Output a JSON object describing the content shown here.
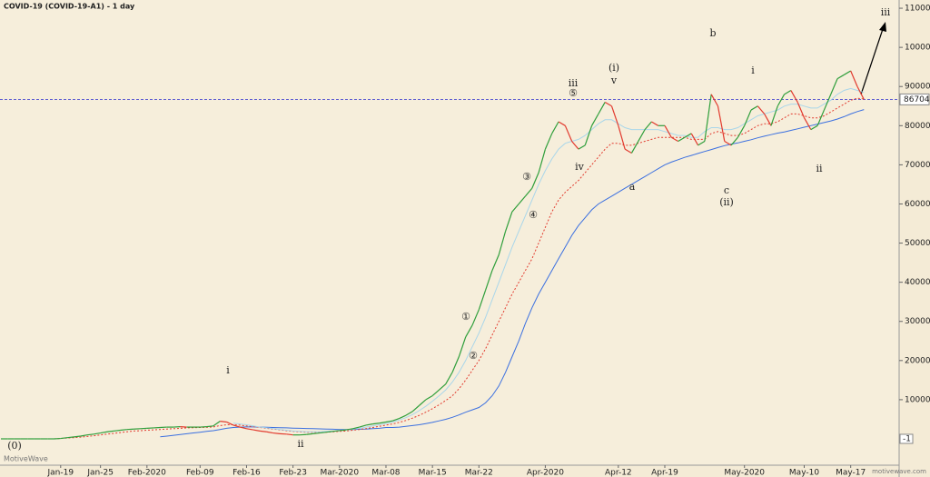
{
  "title": "COVID-19 (COVID-19-A1) - 1 day",
  "watermark": "MotiveWave",
  "site": "motivewave.com",
  "chart_data": {
    "type": "line",
    "categories": [
      null,
      null,
      null,
      null,
      null,
      null,
      null,
      null,
      null,
      "Jan-19",
      null,
      null,
      null,
      null,
      null,
      "Jan-25",
      null,
      null,
      null,
      null,
      null,
      null,
      "Feb-2020",
      null,
      null,
      null,
      null,
      null,
      null,
      null,
      "Feb-09",
      null,
      null,
      null,
      null,
      null,
      null,
      "Feb-16",
      null,
      null,
      null,
      null,
      null,
      null,
      "Feb-23",
      null,
      null,
      null,
      null,
      null,
      null,
      "Mar-2020",
      null,
      null,
      null,
      null,
      null,
      null,
      "Mar-08",
      null,
      null,
      null,
      null,
      null,
      null,
      "Mar-15",
      null,
      null,
      null,
      null,
      null,
      null,
      "Mar-22",
      null,
      null,
      null,
      null,
      null,
      null,
      null,
      null,
      null,
      "Apr-2020",
      null,
      null,
      null,
      null,
      null,
      null,
      null,
      null,
      null,
      null,
      "Apr-12",
      null,
      null,
      null,
      null,
      null,
      null,
      "Apr-19",
      null,
      null,
      null,
      null,
      null,
      null,
      null,
      null,
      null,
      null,
      null,
      "May-2020",
      null,
      null,
      null,
      null,
      null,
      null,
      null,
      null,
      "May-10",
      null,
      null,
      null,
      null,
      null,
      null,
      "May-17",
      null,
      null
    ],
    "series": [
      {
        "color": "#3a6fe0",
        "style": "solid",
        "values": [
          null,
          null,
          null,
          null,
          null,
          null,
          null,
          null,
          null,
          null,
          null,
          null,
          null,
          null,
          null,
          null,
          null,
          null,
          null,
          null,
          null,
          null,
          null,
          null,
          500,
          700,
          900,
          1100,
          1300,
          1500,
          1700,
          1900,
          2100,
          2400,
          2700,
          2900,
          3000,
          3050,
          3050,
          3000,
          2950,
          2900,
          2850,
          2800,
          2750,
          2700,
          2650,
          2600,
          2550,
          2500,
          2450,
          2400,
          2400,
          2400,
          2450,
          2500,
          2600,
          2700,
          2900,
          2900,
          3000,
          3200,
          3400,
          3600,
          3900,
          4200,
          4600,
          5000,
          5500,
          6100,
          6800,
          7400,
          8000,
          9200,
          11000,
          13500,
          17000,
          21000,
          25000,
          29500,
          33500,
          37000,
          40000,
          43000,
          46000,
          49000,
          52000,
          54500,
          56500,
          58500,
          60000,
          61000,
          62000,
          63000,
          64000,
          65000,
          66000,
          67000,
          68000,
          69000,
          70000,
          70700,
          71300,
          71900,
          72400,
          72900,
          73400,
          73900,
          74400,
          74900,
          75300,
          75600,
          76000,
          76400,
          76900,
          77300,
          77700,
          78100,
          78400,
          78800,
          79200,
          79600,
          80000,
          80400,
          80800,
          81200,
          81700,
          82300,
          83000,
          83600,
          84100
        ]
      },
      {
        "color": "#e23a2e",
        "style": "dotted",
        "values": [
          null,
          null,
          null,
          null,
          null,
          null,
          null,
          null,
          0,
          100,
          200,
          300,
          450,
          600,
          800,
          1000,
          1200,
          1400,
          1600,
          1800,
          2000,
          2100,
          2200,
          2300,
          2400,
          2500,
          2600,
          2700,
          2800,
          2850,
          2900,
          2950,
          3050,
          3400,
          3600,
          3600,
          3500,
          3300,
          3100,
          2900,
          2700,
          2500,
          2300,
          2100,
          1900,
          1800,
          1700,
          1700,
          1700,
          1700,
          1800,
          1900,
          2000,
          2200,
          2400,
          2600,
          2900,
          3200,
          3500,
          3800,
          4200,
          4700,
          5300,
          6000,
          6800,
          7700,
          8700,
          9800,
          11000,
          12800,
          15000,
          17500,
          20000,
          23000,
          26500,
          30000,
          33500,
          37000,
          40000,
          43000,
          46000,
          50000,
          54000,
          58000,
          61000,
          63000,
          64500,
          66000,
          68000,
          70000,
          72000,
          74000,
          75500,
          75500,
          75000,
          75000,
          75500,
          76000,
          76500,
          77000,
          77000,
          77000,
          77000,
          77000,
          76500,
          76500,
          76500,
          78000,
          78500,
          78000,
          77500,
          77500,
          78000,
          79000,
          80000,
          80500,
          80500,
          81000,
          82000,
          83000,
          83000,
          82500,
          82000,
          82000,
          82500,
          83500,
          84500,
          85500,
          86500,
          87000,
          86800
        ]
      },
      {
        "color": "#a9d6ea",
        "style": "solid",
        "values": [
          null,
          null,
          null,
          null,
          null,
          null,
          null,
          null,
          null,
          null,
          null,
          null,
          null,
          null,
          null,
          null,
          null,
          null,
          null,
          null,
          null,
          null,
          null,
          null,
          null,
          null,
          null,
          null,
          null,
          null,
          null,
          null,
          null,
          null,
          null,
          4000,
          3800,
          3600,
          3300,
          3000,
          2800,
          2600,
          2400,
          2200,
          2000,
          1900,
          1800,
          1800,
          1800,
          1900,
          2000,
          2100,
          2300,
          2500,
          2700,
          3000,
          3300,
          3600,
          3900,
          4300,
          4800,
          5400,
          6200,
          7200,
          8300,
          9600,
          11000,
          12500,
          14500,
          17000,
          20000,
          23500,
          27000,
          31000,
          35500,
          40000,
          44500,
          49000,
          53000,
          57000,
          61000,
          65000,
          68500,
          71500,
          74000,
          75500,
          76000,
          76500,
          77500,
          79000,
          80500,
          81500,
          81500,
          80500,
          79500,
          79000,
          79000,
          79000,
          79000,
          79000,
          78500,
          78000,
          77500,
          77500,
          77000,
          77000,
          78500,
          79500,
          79500,
          79000,
          79000,
          79500,
          80500,
          81500,
          82500,
          83000,
          83500,
          84000,
          85000,
          85500,
          85500,
          85000,
          84500,
          84500,
          85500,
          86500,
          88000,
          89000,
          89500,
          89000,
          88500
        ]
      },
      {
        "color": "#2e9e3a",
        "down_color": "#e23a2e",
        "style": "updown",
        "values": [
          0,
          0,
          0,
          0,
          0,
          0,
          0,
          0,
          0,
          100,
          300,
          500,
          700,
          1000,
          1200,
          1500,
          1800,
          2000,
          2200,
          2400,
          2500,
          2600,
          2700,
          2800,
          2900,
          3000,
          3000,
          3100,
          3000,
          3000,
          3000,
          3100,
          3300,
          4500,
          4300,
          3500,
          3000,
          2600,
          2300,
          2000,
          1800,
          1500,
          1300,
          1200,
          1000,
          1000,
          1100,
          1300,
          1500,
          1700,
          1900,
          2100,
          2300,
          2600,
          3000,
          3500,
          3800,
          4000,
          4300,
          4600,
          5200,
          6000,
          7000,
          8500,
          10000,
          11000,
          12500,
          14000,
          17000,
          21000,
          26000,
          29000,
          33000,
          38000,
          43000,
          47000,
          53000,
          58000,
          60000,
          62000,
          64000,
          68000,
          74000,
          78000,
          81000,
          80000,
          76000,
          74000,
          75000,
          80000,
          83000,
          86000,
          85000,
          80000,
          74000,
          73000,
          76000,
          79000,
          81000,
          80000,
          80000,
          77000,
          76000,
          77000,
          78000,
          75000,
          76000,
          88000,
          85000,
          76000,
          75000,
          77000,
          80000,
          84000,
          85000,
          83000,
          80000,
          85000,
          88000,
          89000,
          86000,
          82000,
          79000,
          80000,
          84000,
          88000,
          92000,
          93000,
          94000,
          90000,
          86704
        ]
      }
    ],
    "ylim": [
      -6730,
      112100
    ],
    "yticks": [
      10000,
      20000,
      30000,
      40000,
      50000,
      60000,
      70000,
      80000,
      90000,
      100000,
      110000
    ],
    "last_price": 86704,
    "zero_marker": -1,
    "annotations": [
      "(0)",
      "i",
      "ii",
      "①",
      "②",
      "③",
      "④",
      "⑤",
      "iii",
      "iv",
      "(i)",
      "v",
      "a",
      "b",
      "c",
      "(ii)",
      "i",
      "ii",
      "iii"
    ]
  }
}
